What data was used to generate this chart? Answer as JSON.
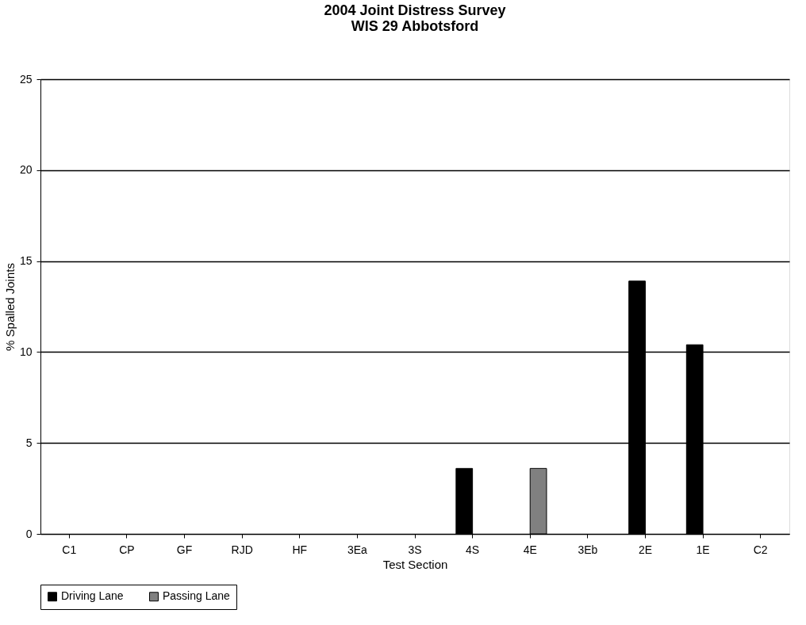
{
  "chart_data": {
    "type": "bar",
    "title": [
      "2004 Joint Distress Survey",
      "WIS 29 Abbotsford"
    ],
    "xlabel": "Test Section",
    "ylabel": "% Spalled Joints",
    "categories": [
      "C1",
      "CP",
      "GF",
      "RJD",
      "HF",
      "3Ea",
      "3S",
      "4S",
      "4E",
      "3Eb",
      "2E",
      "1E",
      "C2"
    ],
    "series": [
      {
        "name": "Driving Lane",
        "color": "#000000",
        "values": [
          0,
          0,
          0,
          0,
          0,
          0,
          0,
          3.6,
          0,
          0,
          13.9,
          10.4,
          0
        ]
      },
      {
        "name": "Passing Lane",
        "color": "#808080",
        "values": [
          0,
          0,
          0,
          0,
          0,
          0,
          0,
          0,
          3.6,
          0,
          0,
          0,
          0
        ]
      }
    ],
    "ylim": [
      0,
      25
    ],
    "yticks": [
      0,
      5,
      10,
      15,
      20,
      25
    ],
    "grid": "y",
    "legend": "bottom"
  }
}
